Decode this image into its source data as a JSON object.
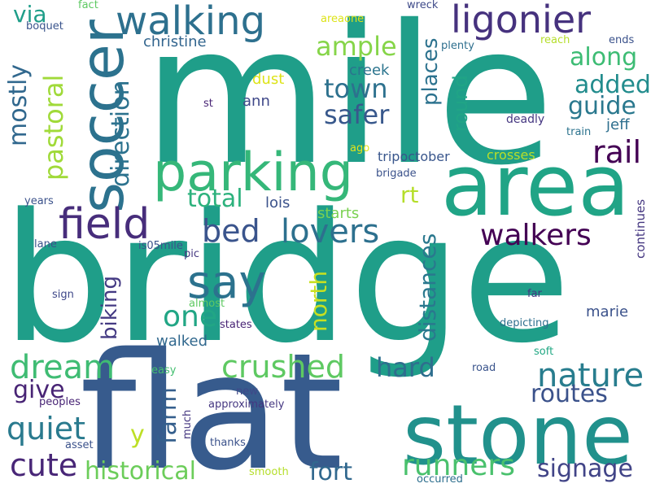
{
  "words": [
    {
      "id": "bridge",
      "text": "bridge",
      "color": "#1f9e89"
    },
    {
      "id": "mile",
      "text": "mile",
      "color": "#1f9e89"
    },
    {
      "id": "flat",
      "text": "flat",
      "color": "#375b8d"
    },
    {
      "id": "area",
      "text": "area",
      "color": "#20a486"
    },
    {
      "id": "stone",
      "text": "stone",
      "color": "#21918c"
    },
    {
      "id": "parking",
      "text": "parking",
      "color": "#35b779"
    },
    {
      "id": "soccer",
      "text": "soccer",
      "color": "#2c728e"
    },
    {
      "id": "walking",
      "text": "walking",
      "color": "#2d708e"
    },
    {
      "id": "ligonier",
      "text": "ligonier",
      "color": "#46327e"
    },
    {
      "id": "field",
      "text": "field",
      "color": "#472d7b"
    },
    {
      "id": "say",
      "text": "say",
      "color": "#2c728e"
    },
    {
      "id": "lovers",
      "text": "lovers",
      "color": "#2d708e"
    },
    {
      "id": "bed",
      "text": "bed",
      "color": "#3a548c"
    },
    {
      "id": "walkers",
      "text": "walkers",
      "color": "#440154"
    },
    {
      "id": "crushed",
      "text": "crushed",
      "color": "#5ec962"
    },
    {
      "id": "nature",
      "text": "nature",
      "color": "#287d8e"
    },
    {
      "id": "dream",
      "text": "dream",
      "color": "#3fbc73"
    },
    {
      "id": "runners",
      "text": "runners",
      "color": "#4ac16d"
    },
    {
      "id": "historical",
      "text": "historical",
      "color": "#6ccd5a"
    },
    {
      "id": "quiet",
      "text": "quiet",
      "color": "#297a8e"
    },
    {
      "id": "cute",
      "text": "cute",
      "color": "#482677"
    },
    {
      "id": "fort",
      "text": "fort",
      "color": "#31688e"
    },
    {
      "id": "signage",
      "text": "signage",
      "color": "#414487"
    },
    {
      "id": "routes",
      "text": "routes",
      "color": "#3b528b"
    },
    {
      "id": "hard",
      "text": "hard",
      "color": "#2e6e8e"
    },
    {
      "id": "rail",
      "text": "rail",
      "color": "#440154"
    },
    {
      "id": "guide",
      "text": "guide",
      "color": "#2a788e"
    },
    {
      "id": "added",
      "text": "added",
      "color": "#228c8d"
    },
    {
      "id": "along",
      "text": "along",
      "color": "#3dbc74"
    },
    {
      "id": "ample",
      "text": "ample",
      "color": "#86d549"
    },
    {
      "id": "town",
      "text": "town",
      "color": "#2d718e"
    },
    {
      "id": "safer",
      "text": "safer",
      "color": "#38588c"
    },
    {
      "id": "total",
      "text": "total",
      "color": "#2db27d"
    },
    {
      "id": "one",
      "text": "one",
      "color": "#21a685"
    },
    {
      "id": "give",
      "text": "give",
      "color": "#482475"
    },
    {
      "id": "rt",
      "text": "rt",
      "color": "#b5de2b"
    },
    {
      "id": "y",
      "text": "y",
      "color": "#bddf26"
    },
    {
      "id": "farm",
      "text": "farm",
      "color": "#355f8d"
    },
    {
      "id": "via",
      "text": "via",
      "color": "#1f9e89"
    },
    {
      "id": "mostly",
      "text": "mostly",
      "color": "#31688e"
    },
    {
      "id": "pastoral",
      "text": "pastoral",
      "color": "#a0da39"
    },
    {
      "id": "direction",
      "text": "direction",
      "color": "#2c728e"
    },
    {
      "id": "biking",
      "text": "biking",
      "color": "#443a83"
    },
    {
      "id": "north",
      "text": "north",
      "color": "#c8e020"
    },
    {
      "id": "distances",
      "text": "distances",
      "color": "#2a788e"
    },
    {
      "id": "places",
      "text": "places",
      "color": "#2c728e"
    },
    {
      "id": "round",
      "text": "round",
      "color": "#20a486"
    },
    {
      "id": "walked",
      "text": "walked",
      "color": "#31688e"
    },
    {
      "id": "christine",
      "text": "christine",
      "color": "#32658e"
    },
    {
      "id": "creek",
      "text": "creek",
      "color": "#2b748e"
    },
    {
      "id": "starts",
      "text": "starts",
      "color": "#7ad151"
    },
    {
      "id": "lois",
      "text": "lois",
      "color": "#3b528b"
    },
    {
      "id": "ann",
      "text": "ann",
      "color": "#3f4889"
    },
    {
      "id": "dust",
      "text": "dust",
      "color": "#dde318"
    },
    {
      "id": "marie",
      "text": "marie",
      "color": "#3b528b"
    },
    {
      "id": "jeff",
      "text": "jeff",
      "color": "#2e6f8e"
    },
    {
      "id": "crosses",
      "text": "crosses",
      "color": "#b8de29"
    },
    {
      "id": "tripoctober",
      "text": "tripoctober",
      "color": "#39568c"
    },
    {
      "id": "continues",
      "text": "continues",
      "color": "#453781"
    },
    {
      "id": "deadly",
      "text": "deadly",
      "color": "#453781"
    },
    {
      "id": "train",
      "text": "train",
      "color": "#2c738e"
    },
    {
      "id": "fact",
      "text": "fact",
      "color": "#5ec962"
    },
    {
      "id": "areaone",
      "text": "areaone",
      "color": "#dde318"
    },
    {
      "id": "wreck",
      "text": "wreck",
      "color": "#3e4a89"
    },
    {
      "id": "boquet",
      "text": "boquet",
      "color": "#3a548c"
    },
    {
      "id": "plenty",
      "text": "plenty",
      "color": "#2e6f8e"
    },
    {
      "id": "reach",
      "text": "reach",
      "color": "#b5de2b"
    },
    {
      "id": "ends",
      "text": "ends",
      "color": "#3b528b"
    },
    {
      "id": "st",
      "text": "st",
      "color": "#482475"
    },
    {
      "id": "ago",
      "text": "ago",
      "color": "#e5e419"
    },
    {
      "id": "brigade",
      "text": "brigade",
      "color": "#3b528b"
    },
    {
      "id": "years",
      "text": "years",
      "color": "#3b528b"
    },
    {
      "id": "pic",
      "text": "pic",
      "color": "#453781"
    },
    {
      "id": "is05mile",
      "text": "is05mile",
      "color": "#3b528b"
    },
    {
      "id": "lane",
      "text": "lane",
      "color": "#3b528b"
    },
    {
      "id": "sign",
      "text": "sign",
      "color": "#3f4889"
    },
    {
      "id": "almost",
      "text": "almost",
      "color": "#5ec962"
    },
    {
      "id": "states",
      "text": "states",
      "color": "#482475"
    },
    {
      "id": "far",
      "text": "far",
      "color": "#453781"
    },
    {
      "id": "depicting",
      "text": "depicting",
      "color": "#2e6f8e"
    },
    {
      "id": "soft",
      "text": "soft",
      "color": "#22a884"
    },
    {
      "id": "easy",
      "text": "easy",
      "color": "#44bf70"
    },
    {
      "id": "road",
      "text": "road",
      "color": "#3a548c"
    },
    {
      "id": "new",
      "text": "new",
      "color": "#3f4889"
    },
    {
      "id": "peoples",
      "text": "peoples",
      "color": "#482475"
    },
    {
      "id": "approximately",
      "text": "approximately",
      "color": "#453781"
    },
    {
      "id": "asset",
      "text": "asset",
      "color": "#3b528b"
    },
    {
      "id": "much",
      "text": "much",
      "color": "#453781"
    },
    {
      "id": "thanks",
      "text": "thanks",
      "color": "#3b528b"
    },
    {
      "id": "smooth",
      "text": "smooth",
      "color": "#b5de2b"
    },
    {
      "id": "occurred",
      "text": "occurred",
      "color": "#2e6f8e"
    }
  ]
}
